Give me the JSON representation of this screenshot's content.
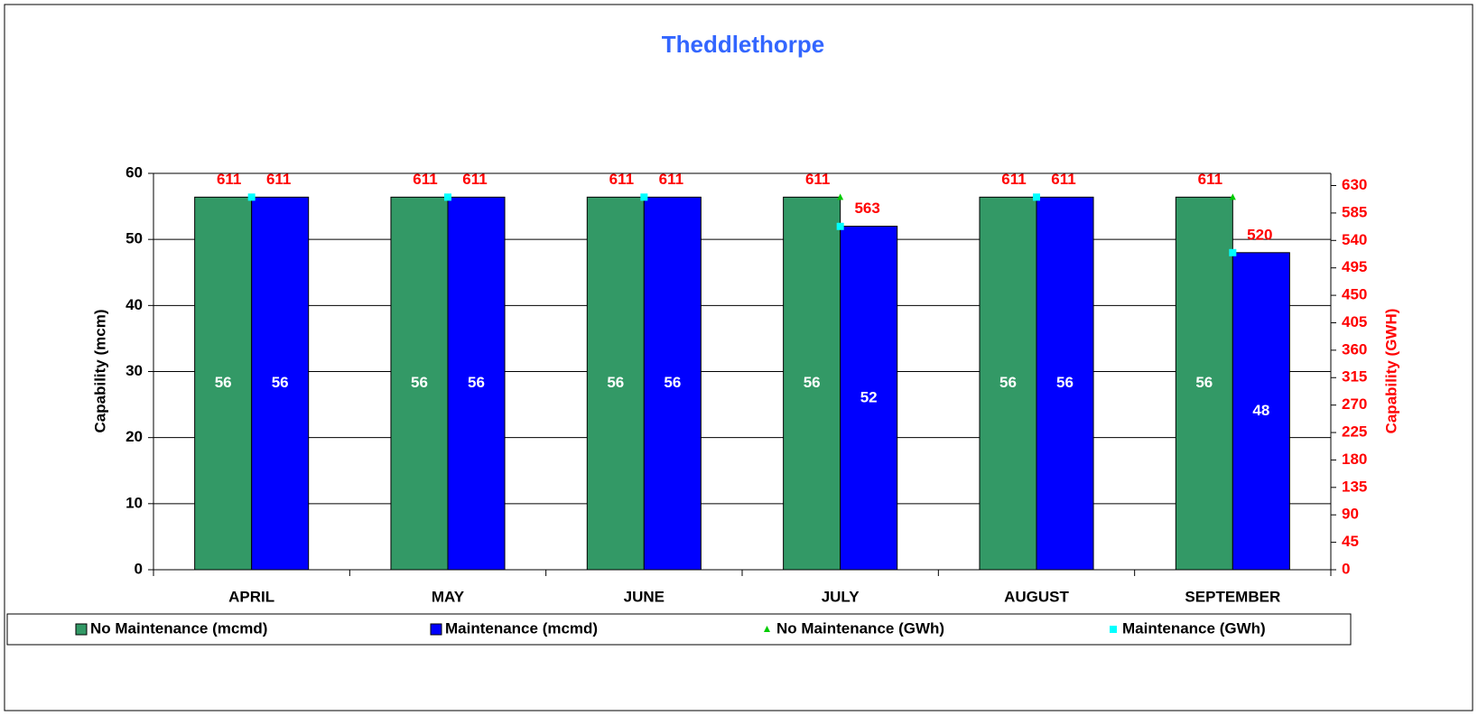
{
  "chart_data": {
    "type": "bar",
    "title": "Theddlethorpe",
    "categories": [
      "APRIL",
      "MAY",
      "JUNE",
      "JULY",
      "AUGUST",
      "SEPTEMBER"
    ],
    "y_label": "Capability (mcm)",
    "y2_label": "Capability (GWH)",
    "ylim": [
      0,
      60
    ],
    "yticks": [
      0,
      10,
      20,
      30,
      40,
      50,
      60
    ],
    "y2lim": [
      0,
      650
    ],
    "y2ticks": [
      0,
      45,
      90,
      135,
      180,
      225,
      270,
      315,
      360,
      405,
      450,
      495,
      540,
      585,
      630
    ],
    "grid": true,
    "legend": "bottom",
    "series": [
      {
        "name": "No Maintenance (mcmd)",
        "type": "bar",
        "color": "#339966",
        "values": [
          56.4,
          56.4,
          56.4,
          56.4,
          56.4,
          56.4
        ],
        "value_labels": [
          "56",
          "56",
          "56",
          "56",
          "56",
          "56"
        ]
      },
      {
        "name": "Maintenance (mcmd)",
        "type": "bar",
        "color": "#0000ff",
        "values": [
          56.4,
          56.4,
          56.4,
          52,
          56.4,
          48
        ],
        "value_labels": [
          "56",
          "56",
          "56",
          "52",
          "56",
          "48"
        ]
      },
      {
        "name": "No Maintenance (GWh)",
        "type": "scatter",
        "axis": "y2",
        "color": "#00cc00",
        "values": [
          611,
          611,
          611,
          611,
          611,
          611
        ]
      },
      {
        "name": "Maintenance (GWh)",
        "type": "scatter",
        "axis": "y2",
        "color": "#00ffff",
        "values": [
          611,
          611,
          611,
          563,
          611,
          520
        ]
      }
    ]
  }
}
